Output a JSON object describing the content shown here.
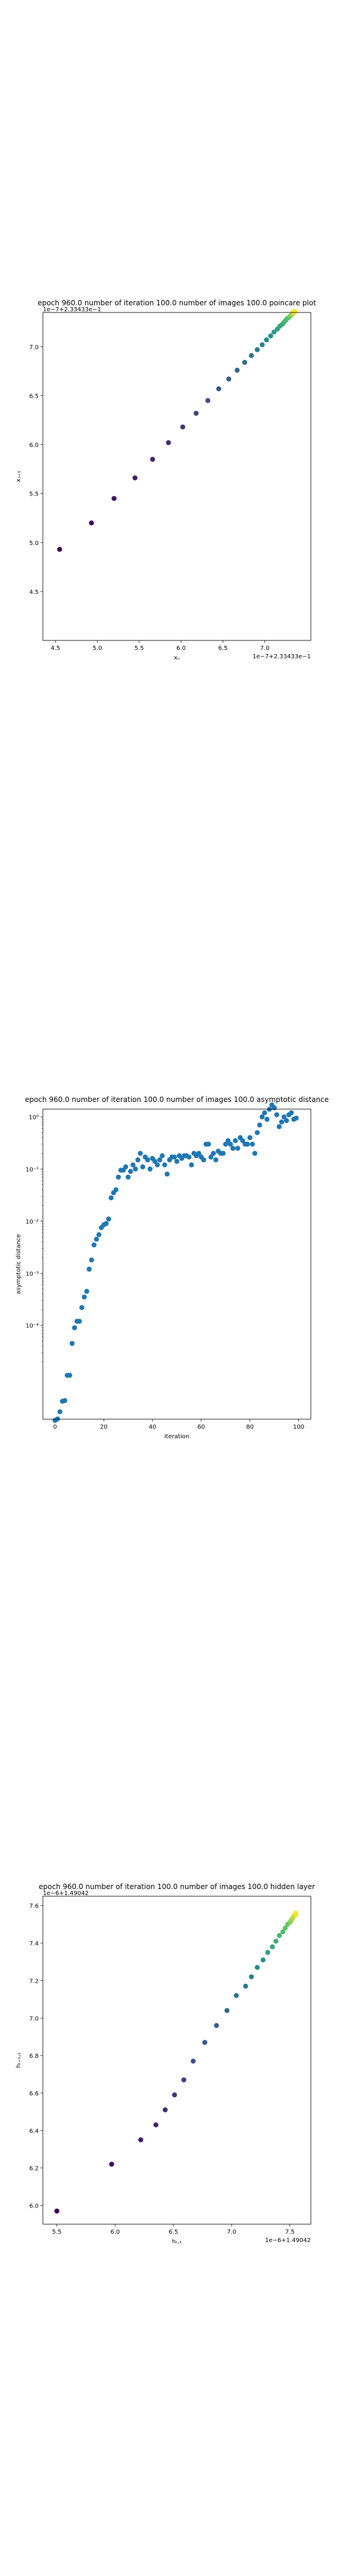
{
  "chart_data": [
    {
      "type": "scatter",
      "title": "epoch 960.0 number of iteration 100.0 number of images 100.0 poincare plot",
      "xlabel": "xₙ",
      "ylabel": "xₙ₊₁",
      "offset_text": "1e−7+2.33433e−1",
      "xlim": [
        4.35,
        7.55
      ],
      "ylim": [
        4.0,
        7.35
      ],
      "xticks": [
        4.5,
        5.0,
        5.5,
        6.0,
        6.5,
        7.0
      ],
      "yticks": [
        4.5,
        5.0,
        5.5,
        6.0,
        6.5,
        7.0
      ],
      "colormap": [
        "#440154",
        "#3b528b",
        "#21918c",
        "#5ec962",
        "#fde725"
      ],
      "x": [
        4.55,
        4.93,
        5.2,
        5.45,
        5.66,
        5.85,
        6.02,
        6.18,
        6.32,
        6.45,
        6.57,
        6.67,
        6.76,
        6.84,
        6.91,
        6.97,
        7.02,
        7.07,
        7.11,
        7.15,
        7.18,
        7.21,
        7.23,
        7.25,
        7.27,
        7.29,
        7.3,
        7.31,
        7.32,
        7.33,
        7.34,
        7.34,
        7.35,
        7.35,
        7.36
      ],
      "y": [
        4.93,
        5.2,
        5.45,
        5.66,
        5.85,
        6.02,
        6.18,
        6.32,
        6.45,
        6.57,
        6.67,
        6.76,
        6.84,
        6.91,
        6.97,
        7.02,
        7.07,
        7.11,
        7.15,
        7.18,
        7.21,
        7.23,
        7.25,
        7.27,
        7.29,
        7.3,
        7.31,
        7.32,
        7.33,
        7.34,
        7.34,
        7.35,
        7.35,
        7.36,
        7.36
      ]
    },
    {
      "type": "scatter",
      "title": "epoch 960.0 number of iteration 100.0  number of images 100.0 asymptotic distance",
      "xlabel": "iteration",
      "ylabel": "asymptotic distance",
      "yscale": "log",
      "xlim": [
        -5,
        105
      ],
      "ylim_exp": [
        -5.8,
        0.15
      ],
      "xticks": [
        0,
        20,
        40,
        60,
        80,
        100
      ],
      "yticks_exp": [
        -4,
        -3,
        -2,
        -1,
        0
      ],
      "ytick_labels": [
        "10⁻⁴",
        "10⁻³",
        "10⁻²",
        "10⁻¹",
        "10⁰"
      ],
      "color": "#1f77b4",
      "x": [
        0,
        1,
        2,
        3,
        4,
        5,
        6,
        7,
        8,
        9,
        10,
        11,
        12,
        13,
        14,
        15,
        16,
        17,
        18,
        19,
        20,
        21,
        22,
        23,
        24,
        25,
        26,
        27,
        28,
        29,
        30,
        31,
        32,
        33,
        34,
        35,
        36,
        37,
        38,
        39,
        40,
        41,
        42,
        43,
        44,
        45,
        46,
        47,
        48,
        49,
        50,
        51,
        52,
        53,
        54,
        55,
        56,
        57,
        58,
        59,
        60,
        61,
        62,
        63,
        64,
        65,
        66,
        67,
        68,
        69,
        70,
        71,
        72,
        73,
        74,
        75,
        76,
        77,
        78,
        79,
        80,
        81,
        82,
        83,
        84,
        85,
        86,
        87,
        88,
        89,
        90,
        91,
        92,
        93,
        94,
        95,
        96,
        97,
        98,
        99
      ],
      "y": [
        1.5e-06,
        1.6e-06,
        2.2e-06,
        3.5e-06,
        3.6e-06,
        1.1e-05,
        1.1e-05,
        4.5e-05,
        9e-05,
        0.00012,
        0.00012,
        0.00022,
        0.00035,
        0.00045,
        0.0012,
        0.0018,
        0.0035,
        0.0045,
        0.0055,
        0.0075,
        0.0085,
        0.009,
        0.011,
        0.028,
        0.035,
        0.04,
        0.07,
        0.095,
        0.095,
        0.11,
        0.07,
        0.09,
        0.12,
        0.1,
        0.15,
        0.2,
        0.11,
        0.17,
        0.15,
        0.1,
        0.16,
        0.14,
        0.12,
        0.15,
        0.18,
        0.12,
        0.08,
        0.15,
        0.17,
        0.17,
        0.14,
        0.18,
        0.16,
        0.18,
        0.18,
        0.17,
        0.12,
        0.2,
        0.18,
        0.2,
        0.17,
        0.15,
        0.3,
        0.3,
        0.17,
        0.2,
        0.15,
        0.22,
        0.2,
        0.2,
        0.3,
        0.35,
        0.3,
        0.25,
        0.35,
        0.25,
        0.4,
        0.35,
        0.3,
        0.3,
        0.4,
        0.3,
        0.2,
        0.5,
        0.7,
        1.0,
        1.2,
        0.9,
        1.4,
        1.7,
        1.5,
        1.1,
        0.65,
        0.8,
        1.0,
        0.85,
        1.1,
        1.2,
        0.9,
        0.95
      ]
    },
    {
      "type": "scatter",
      "title": "epoch 960.0 number of iteration 100.0  number of images 100.0 hidden layer",
      "xlabel": "hₜ,₁",
      "ylabel": "hₜ₊₁,₁",
      "offset_text": "1e−6+1.49042",
      "xlim": [
        5.38,
        7.68
      ],
      "ylim": [
        5.9,
        7.65
      ],
      "xticks": [
        5.5,
        6.0,
        6.5,
        7.0,
        7.5
      ],
      "yticks": [
        6.0,
        6.2,
        6.4,
        6.6,
        6.8,
        7.0,
        7.2,
        7.4,
        7.6
      ],
      "colormap": [
        "#440154",
        "#3b528b",
        "#21918c",
        "#5ec962",
        "#fde725"
      ],
      "x": [
        5.5,
        5.97,
        6.22,
        6.35,
        6.43,
        6.51,
        6.59,
        6.67,
        6.77,
        6.87,
        6.96,
        7.04,
        7.12,
        7.17,
        7.22,
        7.27,
        7.31,
        7.35,
        7.38,
        7.41,
        7.44,
        7.46,
        7.48,
        7.5,
        7.51,
        7.52,
        7.53,
        7.54,
        7.55,
        7.55
      ],
      "y": [
        5.97,
        6.22,
        6.35,
        6.43,
        6.51,
        6.59,
        6.67,
        6.77,
        6.87,
        6.96,
        7.04,
        7.12,
        7.17,
        7.22,
        7.27,
        7.31,
        7.35,
        7.38,
        7.41,
        7.44,
        7.46,
        7.48,
        7.5,
        7.51,
        7.52,
        7.53,
        7.54,
        7.55,
        7.55,
        7.56
      ]
    }
  ]
}
